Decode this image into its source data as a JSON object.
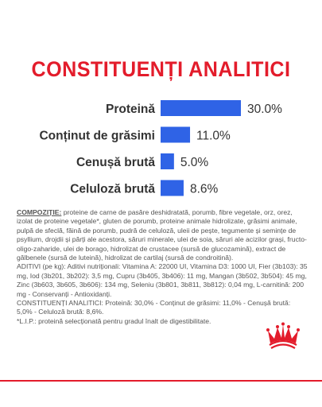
{
  "chart_data": {
    "type": "bar",
    "orientation": "horizontal",
    "title": "CONSTITUENȚI ANALITICI",
    "categories": [
      "Proteină",
      "Conținut de grăsimi",
      "Cenușă brută",
      "Celuloză brută"
    ],
    "values": [
      30.0,
      11.0,
      5.0,
      8.6
    ],
    "value_labels": [
      "30.0%",
      "11.0%",
      "5.0%",
      "8.6%"
    ],
    "units": "%",
    "xlim": [
      0,
      30
    ],
    "bar_color": "#2f63e6",
    "grid": false,
    "legend": "none"
  },
  "composition": {
    "lead": "COMPOZIȚIE:",
    "body": " proteine de carne de pasăre deshidratată, porumb, fibre vegetale, orz, orez, izolat de proteine vegetale*, gluten de porumb, proteine animale hidrolizate, grăsimi animale, pulpă de sfeclă, făină de porumb, pudră de celuloză, uleii de pește, tegumente și semințe de psyllium, drojdii și părți ale acestora, săruri minerale, ulei de soia, săruri ale acizilor grași, fructo-oligo-zaharide, ulei de borago, hidrolizat de crustacee (sursă de glucozamină), extract de gălbenele (sursă de luteină), hidrolizat de cartilaj (sursă de condroitină).\nADITIVI (pe kg): Aditivi nutriționali: Vitamina A: 22000 UI, Vitamina D3: 1000 UI, Fier (3b103): 35 mg, Iod (3b201, 3b202): 3,5 mg, Cupru (3b405, 3b406): 11 mg, Mangan (3b502, 3b504): 45 mg, Zinc (3b603, 3b605, 3b606): 134 mg, Seleniu (3b801, 3b811, 3b812): 0,04 mg, L-carnitină: 200 mg - Conservanți - Antioxidanți.\nCONSTITUENȚI ANALITICI: Proteină: 30,0% - Conținut de grăsimi: 11,0% - Cenușă brută: 5,0% - Celuloză brută: 8,6%.\n*L.I.P.: proteină selecționată pentru gradul înalt de digestibilitate."
  },
  "colors": {
    "accent": "#e31c2b",
    "bar": "#2f63e6",
    "text": "#333333"
  },
  "logo": {
    "name": "crown-logo",
    "color": "#e31c2b"
  }
}
